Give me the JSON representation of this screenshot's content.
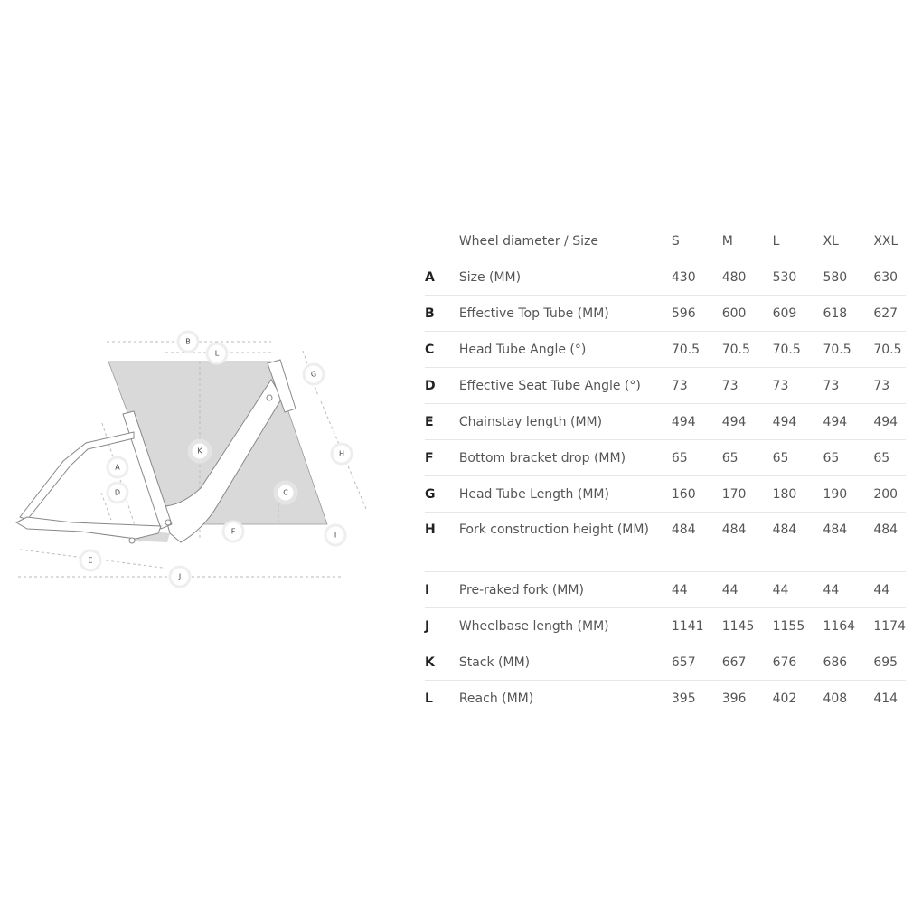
{
  "diagram": {
    "labels": [
      "A",
      "B",
      "C",
      "D",
      "E",
      "F",
      "G",
      "H",
      "I",
      "J",
      "K",
      "L"
    ],
    "fill_color": "#d8d8d8",
    "frame_color": "#ffffff"
  },
  "table": {
    "header": {
      "label": "Wheel diameter / Size",
      "sizes": [
        "S",
        "M",
        "L",
        "XL",
        "XXL"
      ]
    },
    "rows": [
      {
        "key": "A",
        "name": "Size (MM)",
        "values": [
          "430",
          "480",
          "530",
          "580",
          "630"
        ]
      },
      {
        "key": "B",
        "name": "Effective Top Tube (MM)",
        "values": [
          "596",
          "600",
          "609",
          "618",
          "627"
        ]
      },
      {
        "key": "C",
        "name": "Head Tube Angle (°)",
        "values": [
          "70.5",
          "70.5",
          "70.5",
          "70.5",
          "70.5"
        ]
      },
      {
        "key": "D",
        "name": "Effective Seat Tube Angle (°)",
        "values": [
          "73",
          "73",
          "73",
          "73",
          "73"
        ]
      },
      {
        "key": "E",
        "name": "Chainstay length (MM)",
        "values": [
          "494",
          "494",
          "494",
          "494",
          "494"
        ]
      },
      {
        "key": "F",
        "name": "Bottom bracket drop (MM)",
        "values": [
          "65",
          "65",
          "65",
          "65",
          "65"
        ]
      },
      {
        "key": "G",
        "name": "Head Tube Length (MM)",
        "values": [
          "160",
          "170",
          "180",
          "190",
          "200"
        ]
      },
      {
        "key": "H",
        "name": "Fork construction height (MM)",
        "values": [
          "484",
          "484",
          "484",
          "484",
          "484"
        ]
      },
      {
        "key": "I",
        "name": "Pre-raked fork (MM)",
        "values": [
          "44",
          "44",
          "44",
          "44",
          "44"
        ]
      },
      {
        "key": "J",
        "name": "Wheelbase length (MM)",
        "values": [
          "1141",
          "1145",
          "1155",
          "1164",
          "1174"
        ]
      },
      {
        "key": "K",
        "name": "Stack (MM)",
        "values": [
          "657",
          "667",
          "676",
          "686",
          "695"
        ]
      },
      {
        "key": "L",
        "name": "Reach (MM)",
        "values": [
          "395",
          "396",
          "402",
          "408",
          "414"
        ]
      }
    ]
  }
}
